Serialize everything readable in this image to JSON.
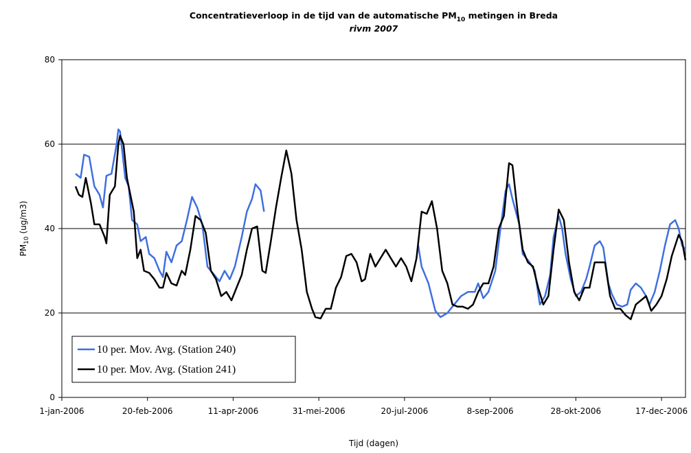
{
  "chart_data": {
    "type": "line",
    "title": [
      "Concentratieverloop in de tijd van de automatische PM",
      "10",
      " metingen in Breda"
    ],
    "subtitle": "rivm 2007",
    "ylabel": [
      "PM",
      "10",
      " (ug/m3)"
    ],
    "xlabel": "Tijd (dagen)",
    "xlim": [
      0,
      364
    ],
    "ylim": [
      0,
      80
    ],
    "yticks": [
      0,
      20,
      40,
      60,
      80
    ],
    "xticks": [
      {
        "value": 0,
        "label": "1-jan-2006"
      },
      {
        "value": 50,
        "label": "20-feb-2006"
      },
      {
        "value": 100,
        "label": "11-apr-2006"
      },
      {
        "value": 150,
        "label": "31-mei-2006"
      },
      {
        "value": 200,
        "label": "20-jul-2006"
      },
      {
        "value": 250,
        "label": "8-sep-2006"
      },
      {
        "value": 300,
        "label": "28-okt-2006"
      },
      {
        "value": 350,
        "label": "17-dec-2006"
      }
    ],
    "grid": true,
    "legend": "lower left",
    "series": [
      {
        "name": "10 per. Mov. Avg. (Station 240)",
        "color": "#3e6fe0",
        "x": [
          8,
          11,
          13,
          16,
          19,
          22,
          24,
          26,
          29,
          32,
          33,
          34,
          37,
          39,
          41,
          44,
          46,
          49,
          51,
          54,
          57,
          59,
          61,
          64,
          67,
          70,
          73,
          76,
          79,
          82,
          85,
          89,
          92,
          95,
          98,
          101,
          105,
          108,
          111,
          113,
          116,
          118,
          160,
          208,
          210,
          214,
          218,
          221,
          225,
          229,
          233,
          237,
          241,
          243,
          246,
          249,
          253,
          256,
          259,
          261,
          263,
          267,
          269,
          273,
          276,
          279,
          282,
          285,
          287,
          290,
          292,
          294,
          297,
          300,
          303,
          306,
          308,
          311,
          314,
          316,
          319,
          321,
          324,
          327,
          330,
          332,
          335,
          338,
          341,
          343,
          346,
          349,
          352,
          355,
          358,
          360,
          362,
          364
        ],
        "values": [
          53,
          52,
          57.5,
          57,
          50,
          48,
          45,
          52.5,
          53,
          60,
          63.5,
          63,
          52,
          50,
          42,
          41,
          37,
          38,
          34,
          33,
          30,
          28.5,
          34.5,
          32,
          36,
          37,
          42,
          47.5,
          45,
          41,
          31,
          29,
          27.5,
          30,
          28,
          31,
          38,
          44,
          47,
          50.5,
          49,
          44,
          null,
          36,
          31,
          27,
          20.5,
          19,
          20,
          22,
          24,
          25,
          25,
          27,
          23.5,
          25,
          30,
          40,
          49,
          50.5,
          47,
          41,
          34,
          32,
          30,
          22,
          24,
          29,
          38,
          43,
          40,
          34,
          28,
          24,
          25,
          28,
          31,
          36,
          37,
          35.5,
          27,
          24.5,
          22,
          21.5,
          22,
          25.5,
          27,
          26,
          24,
          22,
          25,
          30,
          36,
          41,
          42,
          40,
          36,
          35
        ]
      },
      {
        "name": "10 per. Mov. Avg. (Station 241)",
        "color": "#000000",
        "x": [
          8,
          10,
          12,
          14,
          17,
          19,
          22,
          25,
          26,
          28,
          31,
          33,
          34,
          36,
          38,
          40,
          42,
          44,
          46,
          48,
          51,
          54,
          57,
          59,
          61,
          64,
          67,
          70,
          72,
          75,
          78,
          81,
          84,
          87,
          90,
          93,
          96,
          99,
          102,
          105,
          108,
          111,
          114,
          117,
          119,
          122,
          125,
          128,
          131,
          134,
          137,
          140,
          143,
          146,
          148,
          151,
          154,
          157,
          160,
          163,
          166,
          169,
          172,
          175,
          177,
          180,
          183,
          186,
          189,
          192,
          195,
          198,
          201,
          204,
          207,
          210,
          213,
          216,
          219,
          222,
          225,
          228,
          231,
          234,
          237,
          240,
          243,
          246,
          249,
          252,
          255,
          258,
          261,
          263,
          266,
          269,
          272,
          275,
          278,
          281,
          284,
          287,
          290,
          293,
          296,
          299,
          302,
          305,
          308,
          311,
          314,
          317,
          320,
          323,
          326,
          329,
          332,
          335,
          338,
          341,
          344,
          347,
          350,
          353,
          356,
          358,
          360,
          362,
          364
        ],
        "values": [
          50,
          48,
          47.5,
          52,
          46,
          41,
          41,
          38,
          36.5,
          48,
          50,
          60,
          62,
          60,
          52,
          48,
          44,
          33,
          35,
          30,
          29.5,
          28,
          26,
          26,
          29.5,
          27,
          26.5,
          30,
          29,
          35,
          43,
          42,
          39,
          30,
          28,
          24,
          25,
          23,
          26,
          29,
          35,
          40,
          40.5,
          30,
          29.5,
          37,
          45,
          52,
          58.5,
          53,
          42,
          35,
          25,
          21,
          19,
          18.7,
          21,
          21,
          26,
          28.5,
          33.5,
          34,
          32,
          27.5,
          28,
          34,
          31,
          33,
          35,
          33,
          31,
          33,
          31,
          27.5,
          33,
          44,
          43.5,
          46.5,
          40,
          30,
          27,
          22,
          21.5,
          21.5,
          21,
          22,
          25,
          27,
          27,
          31,
          40,
          43,
          55.5,
          55,
          44,
          35,
          32,
          31,
          26,
          22,
          24,
          35,
          44.5,
          42,
          32,
          25,
          23,
          26,
          26,
          32,
          32,
          32,
          24,
          21,
          21,
          19.5,
          18.5,
          22,
          23,
          24,
          20.5,
          22,
          24,
          28,
          33.5,
          36,
          38.5,
          37,
          32.5
        ]
      }
    ]
  }
}
